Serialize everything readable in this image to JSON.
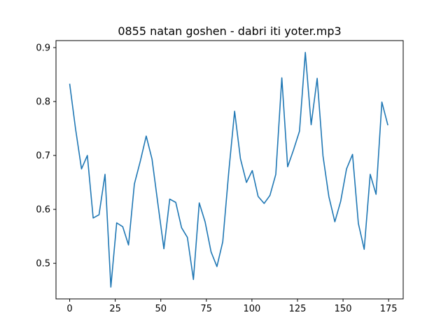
{
  "chart_data": {
    "type": "line",
    "title": "0855 natan goshen - dabri iti yoter.mp3",
    "xlabel": "",
    "ylabel": "",
    "xlim": [
      -7.5,
      183.0
    ],
    "ylim": [
      0.434,
      0.913
    ],
    "x_ticks": [
      0,
      25,
      50,
      75,
      100,
      125,
      150,
      175
    ],
    "y_ticks": [
      0.5,
      0.6,
      0.7,
      0.8,
      0.9
    ],
    "grid": false,
    "legend": "none",
    "series": [
      {
        "color": "#1f77b4",
        "x": [
          0,
          3.2,
          6.5,
          9.7,
          12.9,
          16.1,
          19.4,
          22.6,
          25.8,
          29.1,
          32.3,
          35.5,
          38.8,
          42.0,
          45.2,
          48.5,
          51.7,
          54.9,
          58.2,
          61.4,
          64.6,
          67.9,
          71.1,
          74.3,
          77.6,
          80.8,
          84.0,
          87.3,
          90.5,
          93.7,
          97.0,
          100.2,
          103.4,
          106.7,
          109.9,
          113.1,
          116.4,
          119.6,
          122.8,
          126.1,
          129.3,
          132.5,
          135.8,
          139.0,
          142.2,
          145.5,
          148.7,
          151.9,
          155.2,
          158.4,
          161.6,
          164.9,
          168.1,
          171.3,
          174.6
        ],
        "y": [
          0.833,
          0.75,
          0.675,
          0.7,
          0.584,
          0.59,
          0.665,
          0.456,
          0.575,
          0.568,
          0.534,
          0.647,
          0.69,
          0.736,
          0.693,
          0.608,
          0.527,
          0.619,
          0.613,
          0.566,
          0.548,
          0.47,
          0.612,
          0.577,
          0.521,
          0.494,
          0.54,
          0.67,
          0.782,
          0.694,
          0.65,
          0.672,
          0.624,
          0.611,
          0.626,
          0.665,
          0.844,
          0.679,
          0.71,
          0.745,
          0.891,
          0.757,
          0.843,
          0.699,
          0.624,
          0.577,
          0.615,
          0.675,
          0.702,
          0.574,
          0.526,
          0.665,
          0.628,
          0.799,
          0.756
        ]
      }
    ]
  }
}
